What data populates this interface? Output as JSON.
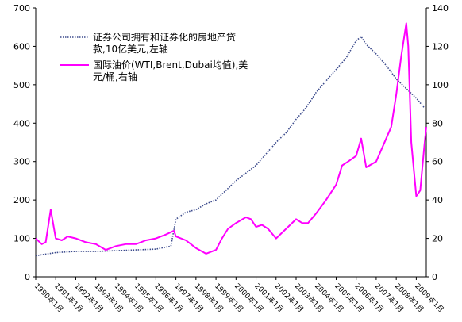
{
  "chart_data": {
    "type": "line",
    "left_axis": {
      "ylim": [
        0,
        700
      ],
      "ticks": [
        "0",
        "100",
        "200",
        "300",
        "400",
        "500",
        "600",
        "700"
      ]
    },
    "right_axis": {
      "ylim": [
        0,
        140
      ],
      "ticks": [
        "0",
        "20",
        "40",
        "60",
        "80",
        "100",
        "120",
        "140"
      ]
    },
    "x_ticks": [
      "1990年1月",
      "1991年1月",
      "1992年1月",
      "1993年1月",
      "1994年1月",
      "1995年1月",
      "1996年1月",
      "1997年1月",
      "1998年1月",
      "1999年1月",
      "2000年1月",
      "2001年1月",
      "2002年1月",
      "2003年1月",
      "2004年1月",
      "2005年1月",
      "2006年1月",
      "2007年1月",
      "2008年1月",
      "2009年1月"
    ],
    "xlim": [
      1990.0,
      2009.5
    ],
    "grid": false,
    "legend_position": "top-left",
    "series": [
      {
        "name": "证券公司拥有和证券化的房地产贷款,10亿美元,左轴",
        "axis": "left",
        "color": "#3b4a8c",
        "style": "dotted",
        "x": [
          1990.0,
          1991.0,
          1992.0,
          1993.0,
          1994.0,
          1995.0,
          1996.0,
          1996.75,
          1997.0,
          1997.5,
          1998.0,
          1998.5,
          1999.0,
          1999.5,
          2000.0,
          2000.5,
          2001.0,
          2001.5,
          2002.0,
          2002.5,
          2003.0,
          2003.5,
          2004.0,
          2004.5,
          2005.0,
          2005.5,
          2006.0,
          2006.25,
          2006.5,
          2007.0,
          2007.5,
          2008.0,
          2008.5,
          2009.0,
          2009.4
        ],
        "values": [
          55,
          63,
          66,
          66,
          68,
          70,
          72,
          80,
          150,
          168,
          175,
          190,
          200,
          225,
          250,
          270,
          290,
          320,
          350,
          375,
          410,
          440,
          480,
          510,
          540,
          570,
          615,
          625,
          605,
          580,
          550,
          515,
          490,
          465,
          440
        ]
      },
      {
        "name": "国际油价(WTI,Brent,Dubai均值),美元/桶,右轴",
        "axis": "right",
        "color": "#ff00ff",
        "style": "solid",
        "x": [
          1990.0,
          1990.3,
          1990.5,
          1990.75,
          1991.0,
          1991.3,
          1991.6,
          1992.0,
          1992.5,
          1993.0,
          1993.5,
          1994.0,
          1994.5,
          1995.0,
          1995.5,
          1996.0,
          1996.5,
          1996.9,
          1997.0,
          1997.5,
          1998.0,
          1998.5,
          1999.0,
          1999.3,
          1999.6,
          2000.0,
          2000.5,
          2000.75,
          2001.0,
          2001.3,
          2001.6,
          2002.0,
          2002.5,
          2003.0,
          2003.3,
          2003.6,
          2004.0,
          2004.5,
          2005.0,
          2005.3,
          2005.6,
          2006.0,
          2006.25,
          2006.5,
          2007.0,
          2007.5,
          2007.75,
          2008.0,
          2008.25,
          2008.5,
          2008.6,
          2008.75,
          2009.0,
          2009.2,
          2009.4,
          2009.5
        ],
        "values": [
          20,
          17,
          18,
          35,
          20,
          19,
          21,
          20,
          18,
          17,
          14,
          16,
          17,
          17,
          19,
          20,
          22,
          24,
          21,
          19,
          15,
          12,
          14,
          20,
          25,
          28,
          31,
          30,
          26,
          27,
          25,
          20,
          25,
          30,
          28,
          28,
          33,
          40,
          48,
          58,
          60,
          63,
          72,
          57,
          60,
          72,
          78,
          95,
          115,
          132,
          120,
          70,
          42,
          45,
          68,
          78
        ]
      }
    ]
  },
  "legend": {
    "items": [
      {
        "line1": "证券公司拥有和证券化的房地产贷",
        "line2": "款,10亿美元,左轴"
      },
      {
        "line1": "国际油价(WTI,Brent,Dubai均值),美",
        "line2": "元/桶,右轴"
      }
    ]
  }
}
